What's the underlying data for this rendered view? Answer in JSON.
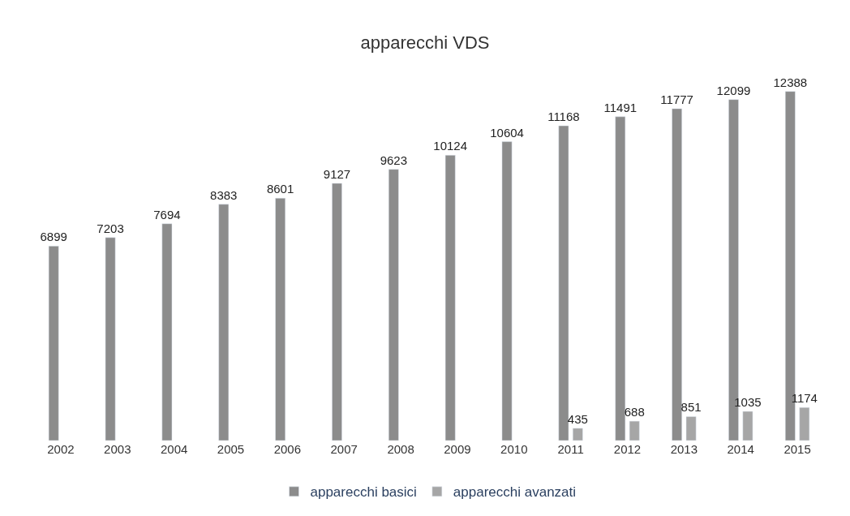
{
  "chart_data": {
    "type": "bar",
    "title": "apparecchi VDS",
    "categories": [
      "2002",
      "2003",
      "2004",
      "2005",
      "2006",
      "2007",
      "2008",
      "2009",
      "2010",
      "2011",
      "2012",
      "2013",
      "2014",
      "2015"
    ],
    "series": [
      {
        "name": "apparecchi basici",
        "color": "#8c8c8c",
        "values": [
          6899,
          7203,
          7694,
          8383,
          8601,
          9127,
          9623,
          10124,
          10604,
          11168,
          11491,
          11777,
          12099,
          12388
        ]
      },
      {
        "name": "apparecchi avanzati",
        "color": "#a6a6a6",
        "values": [
          null,
          null,
          null,
          null,
          null,
          null,
          null,
          null,
          null,
          435,
          688,
          851,
          1035,
          1174
        ]
      }
    ],
    "data_labels": true,
    "legend": "bottom"
  }
}
